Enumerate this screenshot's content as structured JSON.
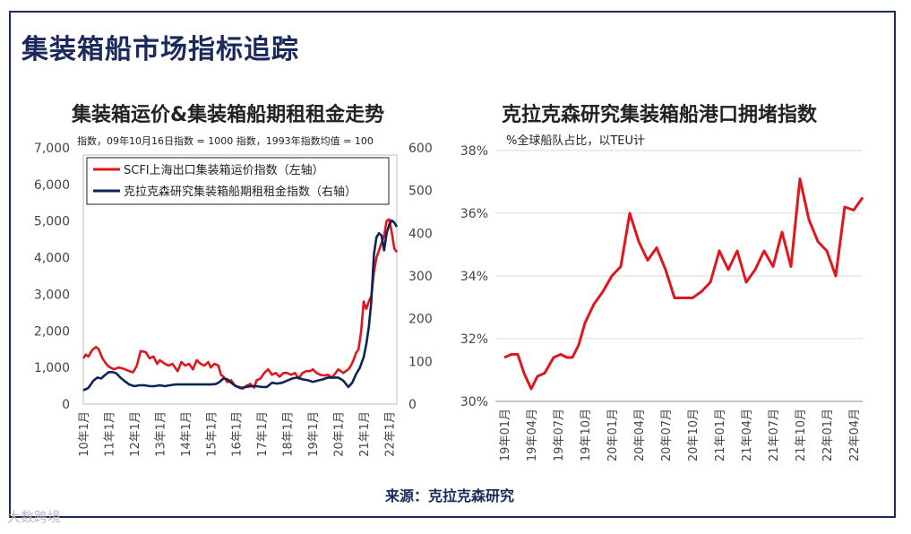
{
  "page": {
    "title": "集装箱船市场指标追踪",
    "source": "来源：克拉克森研究",
    "watermark": "大数跨境"
  },
  "colors": {
    "frame": "#1b2a5c",
    "red": "#e0161c",
    "navy": "#0e2455",
    "grid": "#d9d9d9"
  },
  "chart_data": [
    {
      "type": "line",
      "title": "集装箱运价&集装箱船期租租金走势",
      "note": "指数，09年10月16日指数 = 1000   指数，1993年指数均值 = 100",
      "ylim_left": [
        0,
        7000
      ],
      "left_ticks": [
        "7,000",
        "6,000",
        "5,000",
        "4,000",
        "3,000",
        "2,000",
        "1,000",
        "0"
      ],
      "ylim_right": [
        0,
        600
      ],
      "right_ticks": [
        "600",
        "500",
        "400",
        "300",
        "200",
        "100",
        "0"
      ],
      "x_ticks": [
        "10年1月",
        "11年1月",
        "12年1月",
        "13年1月",
        "14年1月",
        "15年1月",
        "16年1月",
        "17年1月",
        "18年1月",
        "19年1月",
        "20年1月",
        "21年1月",
        "22年1月"
      ],
      "x_range": [
        2010.0,
        2022.3
      ],
      "series": [
        {
          "name": "SCFI上海出口集装箱运价指数（左轴）",
          "axis": "left",
          "color": "#e0161c",
          "points": [
            [
              2010.0,
              1250
            ],
            [
              2010.1,
              1350
            ],
            [
              2010.2,
              1300
            ],
            [
              2010.35,
              1480
            ],
            [
              2010.5,
              1560
            ],
            [
              2010.6,
              1500
            ],
            [
              2010.75,
              1250
            ],
            [
              2010.9,
              1100
            ],
            [
              2011.0,
              1020
            ],
            [
              2011.2,
              950
            ],
            [
              2011.4,
              1000
            ],
            [
              2011.6,
              960
            ],
            [
              2011.8,
              900
            ],
            [
              2011.95,
              870
            ],
            [
              2012.1,
              1050
            ],
            [
              2012.25,
              1450
            ],
            [
              2012.45,
              1420
            ],
            [
              2012.6,
              1250
            ],
            [
              2012.75,
              1300
            ],
            [
              2012.9,
              1100
            ],
            [
              2013.0,
              1200
            ],
            [
              2013.2,
              1100
            ],
            [
              2013.35,
              1050
            ],
            [
              2013.5,
              1100
            ],
            [
              2013.7,
              900
            ],
            [
              2013.85,
              1150
            ],
            [
              2014.0,
              1050
            ],
            [
              2014.15,
              1100
            ],
            [
              2014.3,
              950
            ],
            [
              2014.45,
              1200
            ],
            [
              2014.6,
              1100
            ],
            [
              2014.75,
              1050
            ],
            [
              2014.9,
              1150
            ],
            [
              2015.0,
              1000
            ],
            [
              2015.15,
              1100
            ],
            [
              2015.3,
              1050
            ],
            [
              2015.4,
              800
            ],
            [
              2015.5,
              750
            ],
            [
              2015.65,
              600
            ],
            [
              2015.8,
              650
            ],
            [
              2015.95,
              500
            ],
            [
              2016.1,
              450
            ],
            [
              2016.25,
              420
            ],
            [
              2016.4,
              500
            ],
            [
              2016.55,
              550
            ],
            [
              2016.7,
              450
            ],
            [
              2016.8,
              650
            ],
            [
              2016.95,
              700
            ],
            [
              2017.1,
              850
            ],
            [
              2017.25,
              950
            ],
            [
              2017.4,
              800
            ],
            [
              2017.55,
              850
            ],
            [
              2017.7,
              750
            ],
            [
              2017.85,
              850
            ],
            [
              2018.0,
              850
            ],
            [
              2018.15,
              800
            ],
            [
              2018.3,
              850
            ],
            [
              2018.45,
              700
            ],
            [
              2018.6,
              850
            ],
            [
              2018.75,
              900
            ],
            [
              2018.9,
              900
            ],
            [
              2019.0,
              950
            ],
            [
              2019.15,
              850
            ],
            [
              2019.3,
              800
            ],
            [
              2019.45,
              780
            ],
            [
              2019.6,
              800
            ],
            [
              2019.75,
              720
            ],
            [
              2019.9,
              850
            ],
            [
              2020.0,
              950
            ],
            [
              2020.1,
              900
            ],
            [
              2020.2,
              850
            ],
            [
              2020.3,
              900
            ],
            [
              2020.4,
              950
            ],
            [
              2020.5,
              1050
            ],
            [
              2020.6,
              1200
            ],
            [
              2020.7,
              1400
            ],
            [
              2020.8,
              1500
            ],
            [
              2020.9,
              2000
            ],
            [
              2021.0,
              2800
            ],
            [
              2021.1,
              2600
            ],
            [
              2021.2,
              2800
            ],
            [
              2021.3,
              2950
            ],
            [
              2021.4,
              3600
            ],
            [
              2021.5,
              4000
            ],
            [
              2021.6,
              4200
            ],
            [
              2021.7,
              4400
            ],
            [
              2021.8,
              4600
            ],
            [
              2021.9,
              5000
            ],
            [
              2022.0,
              5050
            ],
            [
              2022.1,
              4700
            ],
            [
              2022.2,
              4250
            ],
            [
              2022.3,
              4150
            ]
          ]
        },
        {
          "name": "克拉克森研究集装箱船期租租金指数（右轴）",
          "axis": "right",
          "color": "#0e2455",
          "points": [
            [
              2010.0,
              32
            ],
            [
              2010.2,
              38
            ],
            [
              2010.4,
              55
            ],
            [
              2010.55,
              62
            ],
            [
              2010.7,
              60
            ],
            [
              2010.85,
              68
            ],
            [
              2011.0,
              75
            ],
            [
              2011.15,
              75
            ],
            [
              2011.3,
              72
            ],
            [
              2011.45,
              62
            ],
            [
              2011.6,
              55
            ],
            [
              2011.8,
              46
            ],
            [
              2012.0,
              42
            ],
            [
              2012.2,
              44
            ],
            [
              2012.4,
              44
            ],
            [
              2012.6,
              42
            ],
            [
              2012.8,
              42
            ],
            [
              2013.0,
              44
            ],
            [
              2013.2,
              42
            ],
            [
              2013.4,
              44
            ],
            [
              2013.6,
              46
            ],
            [
              2013.8,
              46
            ],
            [
              2014.0,
              46
            ],
            [
              2014.2,
              46
            ],
            [
              2014.4,
              46
            ],
            [
              2014.6,
              46
            ],
            [
              2014.8,
              46
            ],
            [
              2015.0,
              46
            ],
            [
              2015.2,
              47
            ],
            [
              2015.35,
              52
            ],
            [
              2015.5,
              60
            ],
            [
              2015.65,
              58
            ],
            [
              2015.8,
              50
            ],
            [
              2016.0,
              42
            ],
            [
              2016.2,
              38
            ],
            [
              2016.4,
              40
            ],
            [
              2016.6,
              42
            ],
            [
              2016.8,
              42
            ],
            [
              2017.0,
              40
            ],
            [
              2017.2,
              40
            ],
            [
              2017.4,
              50
            ],
            [
              2017.6,
              48
            ],
            [
              2017.8,
              50
            ],
            [
              2018.0,
              55
            ],
            [
              2018.2,
              60
            ],
            [
              2018.4,
              62
            ],
            [
              2018.6,
              58
            ],
            [
              2018.8,
              56
            ],
            [
              2019.0,
              52
            ],
            [
              2019.2,
              55
            ],
            [
              2019.4,
              58
            ],
            [
              2019.6,
              62
            ],
            [
              2019.8,
              62
            ],
            [
              2020.0,
              62
            ],
            [
              2020.2,
              55
            ],
            [
              2020.4,
              40
            ],
            [
              2020.55,
              50
            ],
            [
              2020.7,
              70
            ],
            [
              2020.85,
              85
            ],
            [
              2021.0,
              110
            ],
            [
              2021.1,
              140
            ],
            [
              2021.2,
              180
            ],
            [
              2021.3,
              240
            ],
            [
              2021.4,
              350
            ],
            [
              2021.5,
              390
            ],
            [
              2021.6,
              400
            ],
            [
              2021.7,
              395
            ],
            [
              2021.8,
              360
            ],
            [
              2021.9,
              400
            ],
            [
              2022.0,
              420
            ],
            [
              2022.1,
              430
            ],
            [
              2022.2,
              425
            ],
            [
              2022.3,
              415
            ]
          ]
        }
      ]
    },
    {
      "type": "line",
      "title": "克拉克森研究集装箱船港口拥堵指数",
      "note": "%全球船队占比，以TEU计",
      "ylim": [
        30,
        38
      ],
      "y_ticks": [
        "38%",
        "36%",
        "34%",
        "32%",
        "30%"
      ],
      "x_ticks": [
        "19年01月",
        "19年04月",
        "19年07月",
        "19年10月",
        "20年01月",
        "20年04月",
        "20年07月",
        "20年10月",
        "21年01月",
        "21年04月",
        "21年07月",
        "21年10月",
        "22年01月",
        "22年04月"
      ],
      "x_range": [
        0,
        39.5
      ],
      "series": [
        {
          "name": "港口拥堵指数",
          "color": "#e0161c",
          "points": [
            [
              0,
              31.4
            ],
            [
              0.8,
              31.5
            ],
            [
              1.5,
              31.5
            ],
            [
              2.2,
              30.9
            ],
            [
              3,
              30.4
            ],
            [
              3.7,
              30.8
            ],
            [
              4.5,
              30.9
            ],
            [
              5.5,
              31.4
            ],
            [
              6.3,
              31.5
            ],
            [
              7,
              31.4
            ],
            [
              7.6,
              31.4
            ],
            [
              8.3,
              31.8
            ],
            [
              9,
              32.5
            ],
            [
              10,
              33.1
            ],
            [
              11,
              33.5
            ],
            [
              12,
              34.0
            ],
            [
              13,
              34.3
            ],
            [
              14,
              36.0
            ],
            [
              15,
              35.1
            ],
            [
              16,
              34.5
            ],
            [
              17,
              34.9
            ],
            [
              18,
              34.2
            ],
            [
              19,
              33.3
            ],
            [
              20,
              33.3
            ],
            [
              21,
              33.3
            ],
            [
              22,
              33.5
            ],
            [
              23,
              33.8
            ],
            [
              24,
              34.8
            ],
            [
              25,
              34.2
            ],
            [
              26,
              34.8
            ],
            [
              27,
              33.8
            ],
            [
              28,
              34.2
            ],
            [
              29,
              34.8
            ],
            [
              30,
              34.3
            ],
            [
              31,
              35.4
            ],
            [
              32,
              34.3
            ],
            [
              33,
              37.1
            ],
            [
              34,
              35.8
            ],
            [
              35,
              35.1
            ],
            [
              36,
              34.8
            ],
            [
              37,
              34.0
            ],
            [
              38,
              36.2
            ],
            [
              39,
              36.1
            ],
            [
              40,
              36.5
            ]
          ]
        }
      ]
    }
  ]
}
